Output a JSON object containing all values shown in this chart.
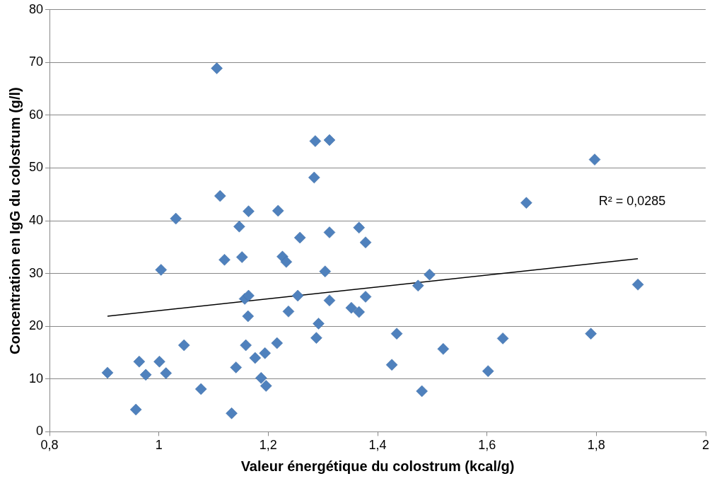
{
  "chart_data": {
    "type": "scatter",
    "xlabel": "Valeur énergétique du colostrum (kcal/g)",
    "ylabel": "Concentration en IgG du colostrum (g/l)",
    "xlim": [
      0.8,
      2
    ],
    "xticks": [
      {
        "value": 0.8,
        "label": "0,8"
      },
      1,
      {
        "value": 1.2,
        "label": "1,2"
      },
      {
        "value": 1.4,
        "label": "1,4"
      },
      {
        "value": 1.6,
        "label": "1,6"
      },
      {
        "value": 1.8,
        "label": "1,8"
      },
      2
    ],
    "ylim": [
      0,
      80
    ],
    "yticks": [
      0,
      10,
      20,
      30,
      40,
      50,
      60,
      70,
      80
    ],
    "grid": "y",
    "legend": false,
    "annotations": [
      "R² = 0,0285"
    ],
    "series": [
      {
        "type": "scatter",
        "marker": "diamond",
        "color": "#4f81bd",
        "x": [
          0.906,
          0.958,
          0.964,
          0.976,
          1.001,
          1.004,
          1.013,
          1.031,
          1.046,
          1.077,
          1.106,
          1.112,
          1.12,
          1.133,
          1.141,
          1.147,
          1.152,
          1.157,
          1.159,
          1.163,
          1.164,
          1.164,
          1.176,
          1.187,
          1.194,
          1.196,
          1.216,
          1.218,
          1.226,
          1.233,
          1.237,
          1.254,
          1.258,
          1.284,
          1.286,
          1.288,
          1.292,
          1.304,
          1.312,
          1.312,
          1.312,
          1.352,
          1.366,
          1.366,
          1.378,
          1.378,
          1.426,
          1.435,
          1.474,
          1.481,
          1.495,
          1.52,
          1.602,
          1.629,
          1.672,
          1.79,
          1.797,
          1.876
        ],
        "values": [
          11.2,
          4.2,
          13.3,
          10.8,
          13.3,
          30.7,
          11.1,
          40.4,
          16.4,
          8.1,
          68.9,
          44.7,
          32.6,
          3.5,
          12.2,
          38.9,
          33.1,
          25.2,
          16.4,
          21.9,
          25.8,
          41.8,
          14.0,
          10.2,
          14.9,
          8.7,
          16.8,
          41.9,
          33.2,
          32.2,
          22.8,
          25.8,
          36.8,
          48.2,
          55.1,
          17.8,
          20.5,
          30.4,
          55.3,
          37.8,
          24.9,
          23.5,
          22.7,
          38.7,
          35.9,
          25.6,
          12.7,
          18.6,
          27.7,
          7.7,
          29.8,
          15.7,
          11.5,
          17.7,
          43.4,
          18.6,
          51.6,
          27.9
        ]
      },
      {
        "type": "line",
        "color": "#000000",
        "x": [
          0.906,
          1.876
        ],
        "values": [
          21.9,
          32.8
        ]
      }
    ]
  }
}
